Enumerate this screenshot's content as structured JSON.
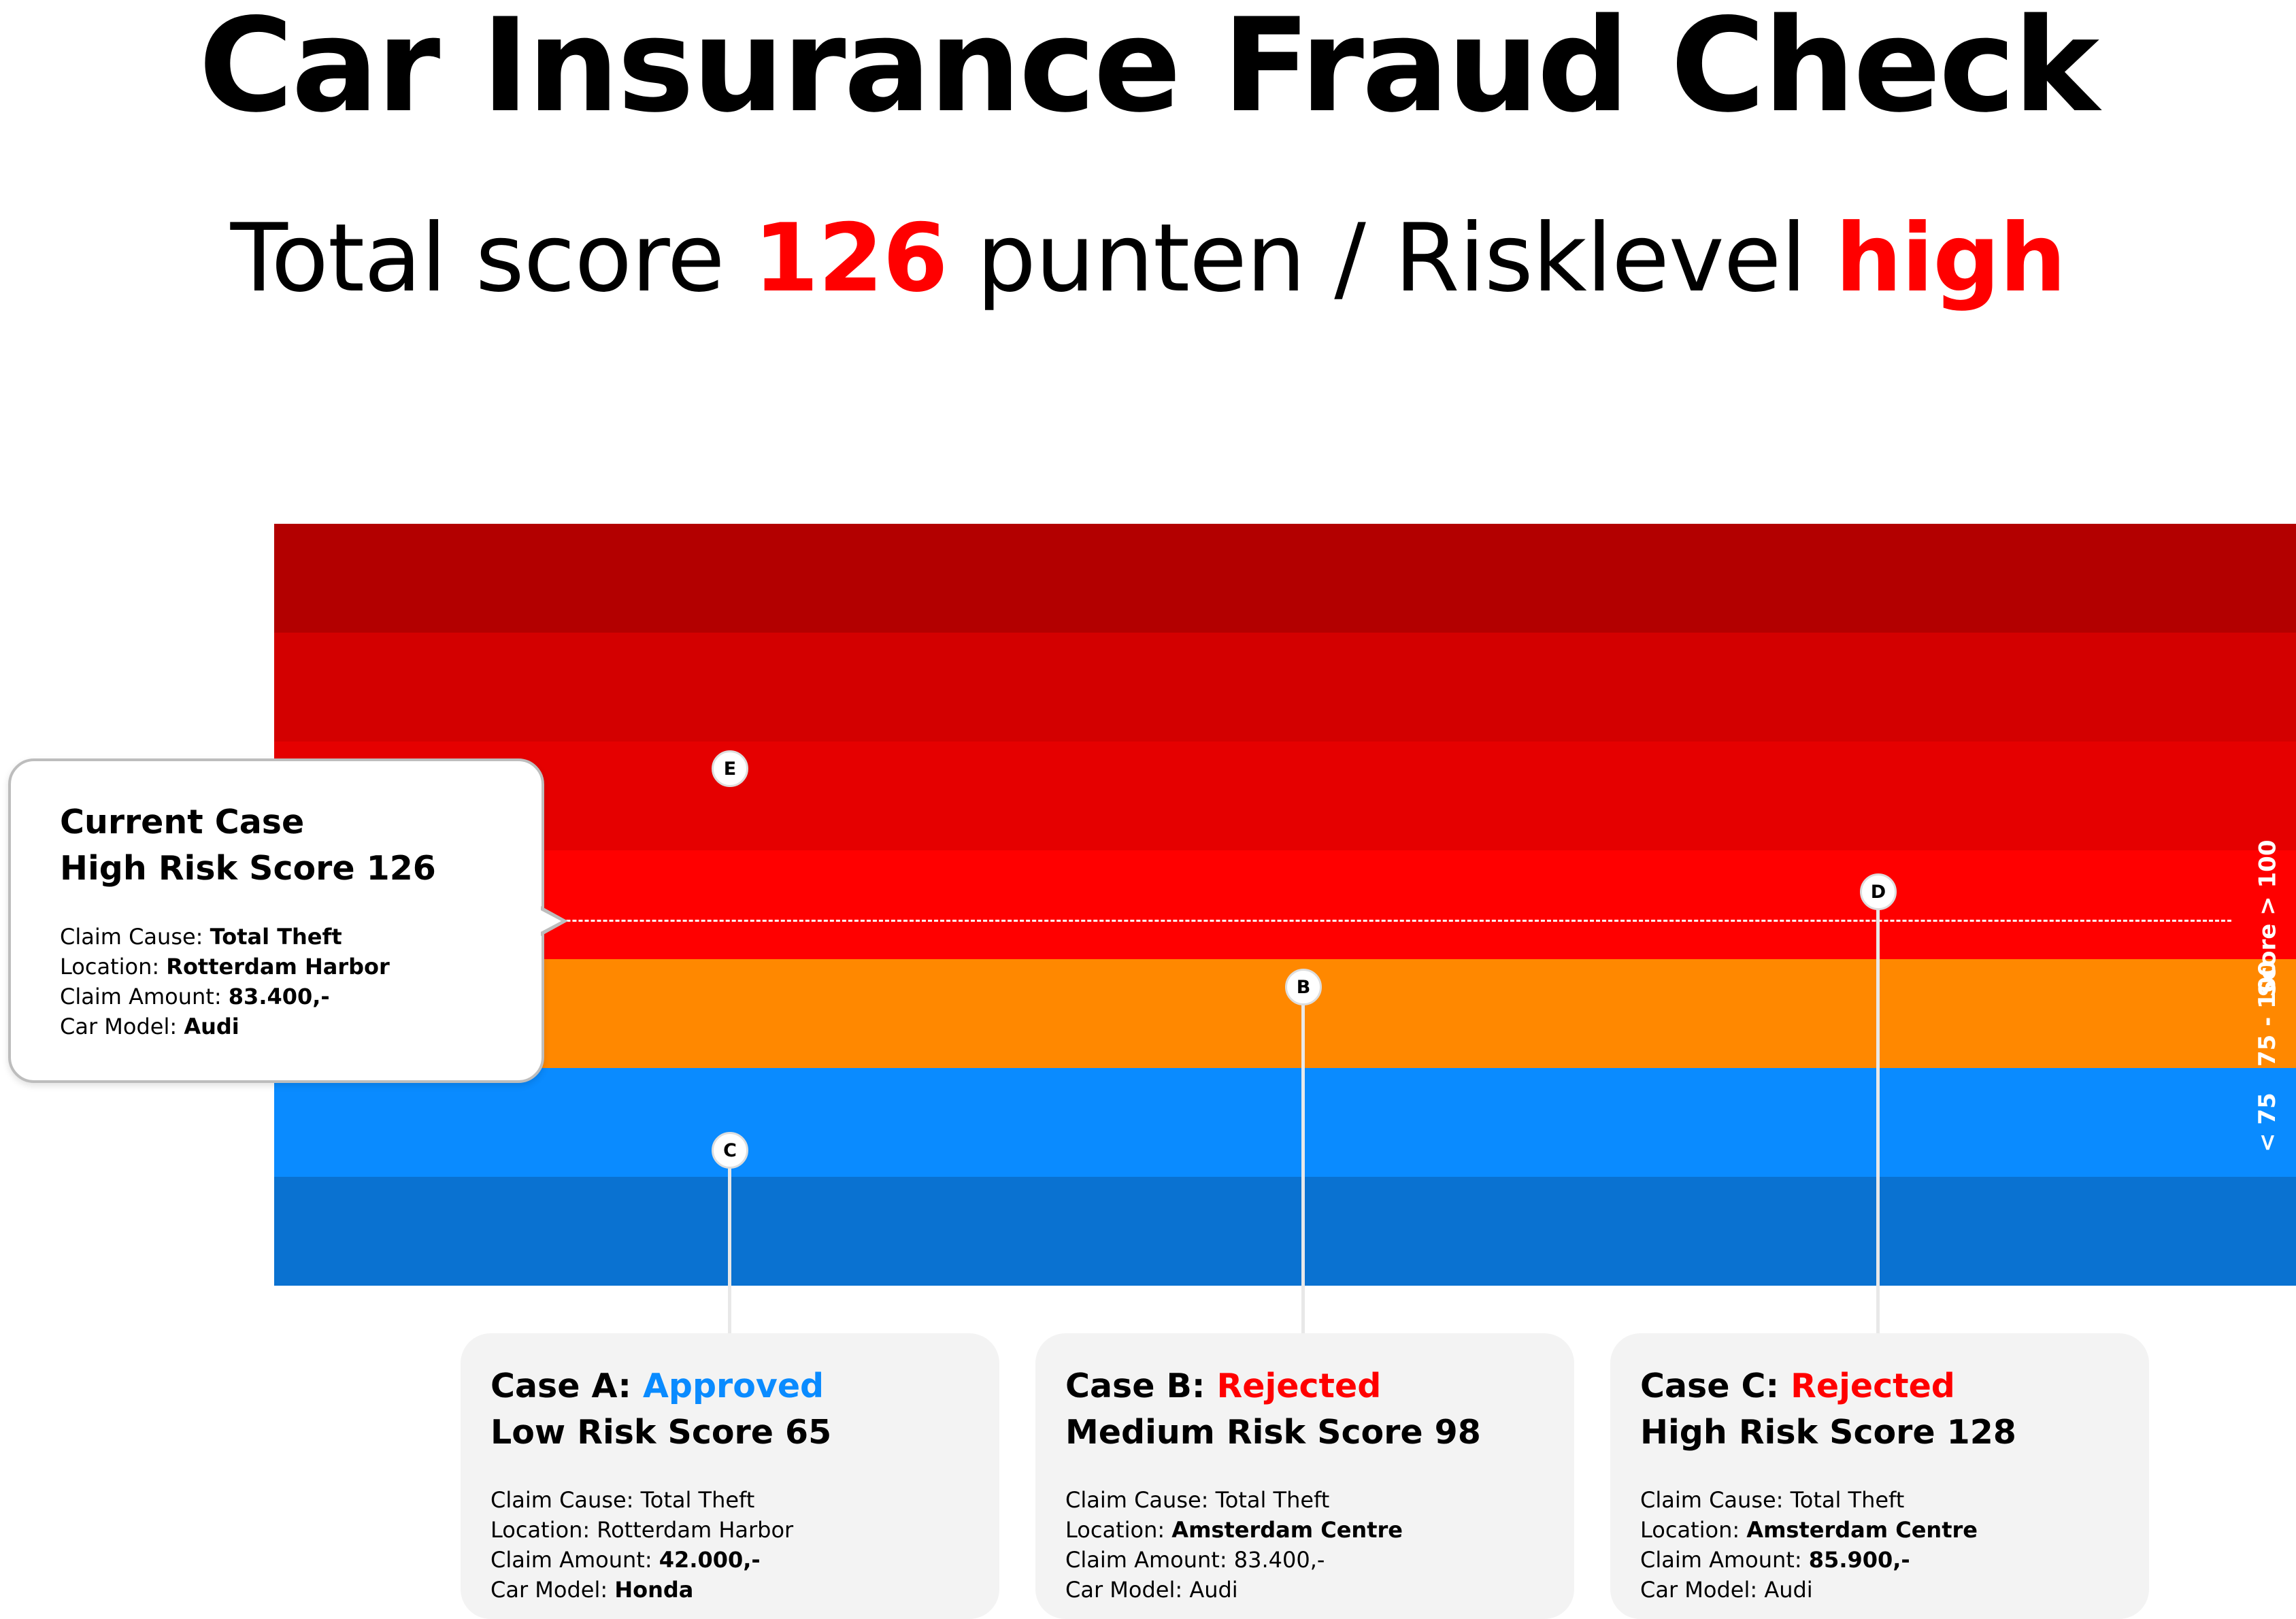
{
  "title": "Car Insurance Fraud Check",
  "subtitle": {
    "prefix": "Total score ",
    "score": "126",
    "middle": " punten / Risklevel ",
    "level": "high"
  },
  "colors": {
    "accent_red": "#ff0000",
    "approved_blue": "#0a8bff",
    "band_dark_red": "#b30000",
    "band_red": "#d30000",
    "band_mid_red": "#e50000",
    "band_bright_red": "#ff0000",
    "band_orange": "#ff8800",
    "band_blue": "#0a8bff",
    "band_dark_blue": "#0a72d1"
  },
  "bands": [
    {
      "color": "#b30000"
    },
    {
      "color": "#d30000"
    },
    {
      "color": "#e50000"
    },
    {
      "color": "#ff0000"
    },
    {
      "color": "#ff8800"
    },
    {
      "color": "#0a8bff"
    },
    {
      "color": "#0a72d1"
    }
  ],
  "band_labels": {
    "high": "Score > 100",
    "medium": "75 - 100",
    "low": "< 75"
  },
  "markers": {
    "e": "E",
    "d": "D",
    "b": "B",
    "c": "C"
  },
  "current_case": {
    "heading": "Current Case",
    "risk": "High Risk Score 126",
    "details": [
      {
        "label": "Claim Cause: ",
        "value": "Total Theft",
        "bold": true
      },
      {
        "label": "Location: ",
        "value": "Rotterdam Harbor",
        "bold": true
      },
      {
        "label": "Claim Amount: ",
        "value": "83.400,-",
        "bold": true
      },
      {
        "label": "Car Model: ",
        "value": "Audi",
        "bold": true
      }
    ]
  },
  "cases": [
    {
      "case_label": "Case A: ",
      "status": "Approved",
      "status_color": "#0a8bff",
      "risk": "Low Risk Score 65",
      "details": [
        {
          "label": "Claim Cause: ",
          "value": "Total Theft",
          "bold": false
        },
        {
          "label": "Location: ",
          "value": "Rotterdam Harbor",
          "bold": false
        },
        {
          "label": "Claim Amount: ",
          "value": "42.000,-",
          "bold": true
        },
        {
          "label": "Car Model: ",
          "value": "Honda",
          "bold": true
        }
      ]
    },
    {
      "case_label": "Case B: ",
      "status": "Rejected",
      "status_color": "#ff0000",
      "risk": "Medium Risk Score 98",
      "details": [
        {
          "label": "Claim Cause: ",
          "value": "Total Theft",
          "bold": false
        },
        {
          "label": "Location: ",
          "value": "Amsterdam Centre",
          "bold": true
        },
        {
          "label": "Claim Amount: ",
          "value": "83.400,-",
          "bold": false
        },
        {
          "label": "Car Model: ",
          "value": "Audi",
          "bold": false
        }
      ]
    },
    {
      "case_label": "Case C: ",
      "status": "Rejected",
      "status_color": "#ff0000",
      "risk": "High Risk Score 128",
      "details": [
        {
          "label": "Claim Cause: ",
          "value": "Total Theft",
          "bold": false
        },
        {
          "label": "Location: ",
          "value": "Amsterdam Centre",
          "bold": true
        },
        {
          "label": "Claim Amount: ",
          "value": "85.900,-",
          "bold": true
        },
        {
          "label": "Car Model: ",
          "value": "Audi",
          "bold": false
        }
      ]
    }
  ]
}
